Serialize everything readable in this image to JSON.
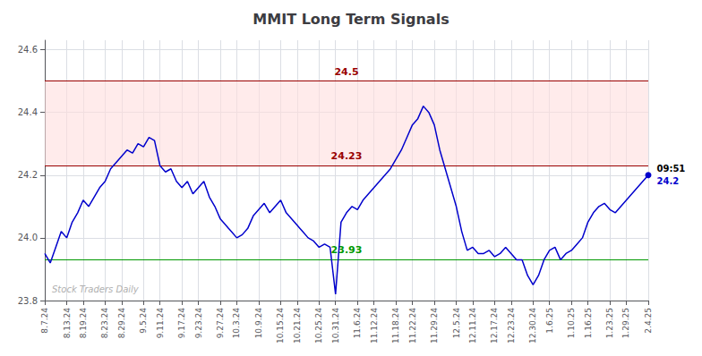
{
  "chart_data": {
    "type": "line",
    "title": "MMIT Long Term Signals",
    "categories": [
      "8.7.24",
      null,
      null,
      null,
      "8.13.24",
      null,
      null,
      "8.19.24",
      null,
      null,
      null,
      "8.23.24",
      null,
      null,
      "8.29.24",
      null,
      null,
      null,
      "9.5.24",
      null,
      null,
      "9.11.24",
      null,
      null,
      null,
      "9.17.24",
      null,
      null,
      "9.23.24",
      null,
      null,
      null,
      "9.27.24",
      null,
      null,
      "10.3.24",
      null,
      null,
      null,
      "10.9.24",
      null,
      null,
      null,
      "10.15.24",
      null,
      null,
      "10.21.24",
      null,
      null,
      null,
      "10.25.24",
      null,
      null,
      "10.31.24",
      null,
      null,
      null,
      "11.6.24",
      null,
      null,
      "11.12.24",
      null,
      null,
      null,
      "11.18.24",
      null,
      null,
      "11.22.24",
      null,
      null,
      null,
      "11.29.24",
      null,
      null,
      null,
      "12.5.24",
      null,
      null,
      "12.11.24",
      null,
      null,
      null,
      "12.17.24",
      null,
      null,
      "12.23.24",
      null,
      null,
      null,
      "12.30.24",
      null,
      null,
      "1.6.25",
      null,
      null,
      null,
      "1.10.25",
      null,
      null,
      "1.16.25",
      null,
      null,
      null,
      "1.23.25",
      null,
      null,
      "1.29.25",
      null,
      null,
      null,
      "2.4.25"
    ],
    "values": [
      23.95,
      23.92,
      23.97,
      24.02,
      24.0,
      24.05,
      24.08,
      24.12,
      24.1,
      24.13,
      24.16,
      24.18,
      24.22,
      24.24,
      24.26,
      24.28,
      24.27,
      24.3,
      24.29,
      24.32,
      24.31,
      24.23,
      24.21,
      24.22,
      24.18,
      24.16,
      24.18,
      24.14,
      24.16,
      24.18,
      24.13,
      24.1,
      24.06,
      24.04,
      24.02,
      24.0,
      24.01,
      24.03,
      24.07,
      24.09,
      24.11,
      24.08,
      24.1,
      24.12,
      24.08,
      24.06,
      24.04,
      24.02,
      24.0,
      23.99,
      23.97,
      23.98,
      23.97,
      23.82,
      24.05,
      24.08,
      24.1,
      24.09,
      24.12,
      24.14,
      24.16,
      24.18,
      24.2,
      24.22,
      24.25,
      24.28,
      24.32,
      24.36,
      24.38,
      24.42,
      24.4,
      24.36,
      24.28,
      24.22,
      24.16,
      24.1,
      24.02,
      23.96,
      23.97,
      23.95,
      23.95,
      23.96,
      23.94,
      23.95,
      23.97,
      23.95,
      23.93,
      23.93,
      23.88,
      23.85,
      23.88,
      23.93,
      23.96,
      23.97,
      23.93,
      23.95,
      23.96,
      23.98,
      24.0,
      24.05,
      24.08,
      24.1,
      24.11,
      24.09,
      24.08,
      24.1,
      24.12,
      24.14,
      24.16,
      24.18,
      24.2
    ],
    "color": "#0000cc",
    "ylim": [
      23.8,
      24.63
    ],
    "yticks": [
      23.8,
      {
        "value": 24.0,
        "label": "24.0"
      },
      24.2,
      24.4,
      24.6
    ],
    "grid": true,
    "hlines": [
      {
        "value": 24.5,
        "label": "24.5",
        "color": "#990000"
      },
      {
        "value": 24.23,
        "label": "24.23",
        "color": "#990000"
      },
      {
        "value": 23.93,
        "label": "23.93",
        "color": "#009900"
      }
    ],
    "band": {
      "from": 24.23,
      "to": 24.5,
      "color": "#ffdddd"
    },
    "annotations": [
      "09:51",
      "24.2"
    ],
    "watermark": "Stock Traders Daily"
  }
}
